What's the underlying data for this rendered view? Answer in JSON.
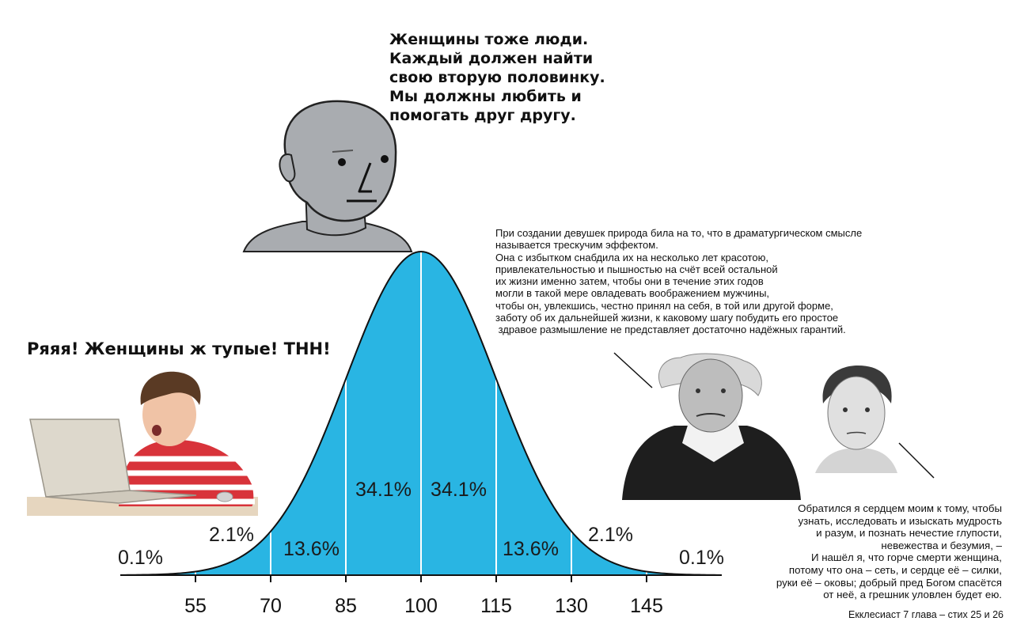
{
  "chart_data": {
    "type": "area",
    "title": "",
    "xlabel": "",
    "ylabel": "",
    "distribution": "normal",
    "mean": 100,
    "sd": 15,
    "x_ticks": [
      55,
      70,
      85,
      100,
      115,
      130,
      145
    ],
    "bands": [
      {
        "range": [
          40,
          55
        ],
        "label": "0.1%"
      },
      {
        "range": [
          55,
          70
        ],
        "label": "2.1%"
      },
      {
        "range": [
          70,
          85
        ],
        "label": "13.6%"
      },
      {
        "range": [
          85,
          100
        ],
        "label": "34.1%"
      },
      {
        "range": [
          100,
          115
        ],
        "label": "34.1%"
      },
      {
        "range": [
          115,
          130
        ],
        "label": "13.6%"
      },
      {
        "range": [
          130,
          145
        ],
        "label": "2.1%"
      },
      {
        "range": [
          145,
          160
        ],
        "label": "0.1%"
      }
    ],
    "fill_color": "#29b5e3",
    "edge_color": "#111111",
    "divider_color": "#ffffff"
  },
  "captions": {
    "npc": [
      "Женщины тоже люди.",
      "Каждый должен найти",
      "свою вторую половинку.",
      "Мы должны любить и",
      "помогать друг другу."
    ],
    "kid": "Ряяя! Женщины ж тупые! ТНН!",
    "schopenhauer_quote": [
      "При создании девушек природа била на то, что в драматургическом смысле",
      "называется трескучим эффектом.",
      "Она с избытком снабдила их на несколько лет красотою,",
      "привлекательностью и пышностью на счёт всей остальной",
      "их жизни именно затем, чтобы они в течение этих годов",
      "могли в такой мере овладевать воображением мужчины,",
      "чтобы он, увлекшись, честно принял на себя, в той или другой форме,",
      "заботу об их дальнейшей жизни, к каковому шагу побудить его простое",
      " здравое размышление не представляет достаточно надёжных гарантий."
    ],
    "ecclesiastes_quote": [
      "Обратился я сердцем моим к тому, чтобы",
      "узнать, исследовать и изыскать мудрость",
      "и разум, и познать нечестие глупости,",
      "невежества и безумия, –",
      "И нашёл я, что горче смерти женщина,",
      "потому что она – сеть, и сердце её – силки,",
      "руки её – оковы; добрый пред Богом спасётся",
      "от неё, а грешник уловлен будет ею."
    ],
    "citation": "Екклесиаст 7 глава – стих 25 и 26"
  },
  "images": {
    "npc": "npc-face-illustration",
    "kid": "kid-at-laptop-photo",
    "schopenhauer": "schopenhauer-portrait",
    "kierkegaard": "kierkegaard-portrait"
  },
  "colors": {
    "npc_skin": "#a9acb0",
    "kid_shirt_red": "#d8333a"
  }
}
